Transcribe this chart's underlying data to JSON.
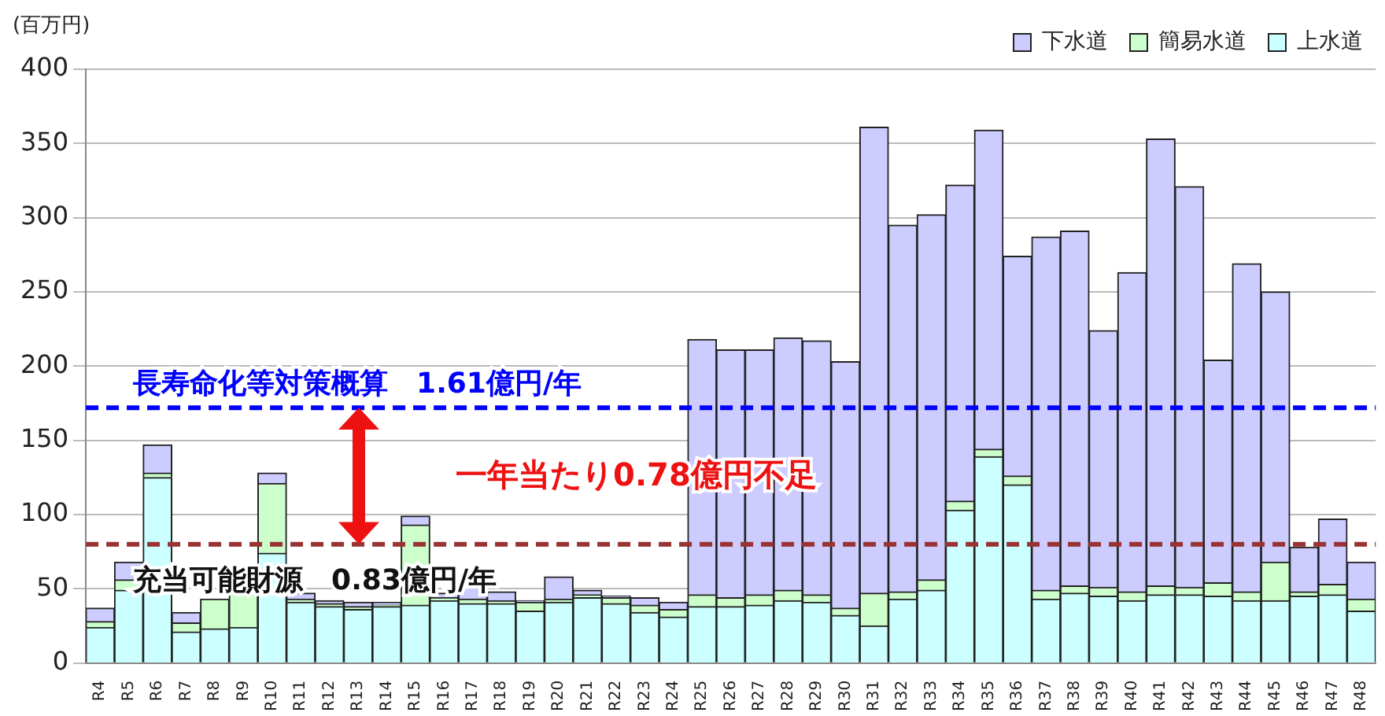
{
  "chart_data": {
    "type": "bar",
    "stacked": true,
    "ylabel": "(百万円)",
    "categories": [
      "R4",
      "R5",
      "R6",
      "R7",
      "R8",
      "R9",
      "R10",
      "R11",
      "R12",
      "R13",
      "R14",
      "R15",
      "R16",
      "R17",
      "R18",
      "R19",
      "R20",
      "R21",
      "R22",
      "R23",
      "R24",
      "R25",
      "R26",
      "R27",
      "R28",
      "R29",
      "R30",
      "R31",
      "R32",
      "R33",
      "R34",
      "R35",
      "R36",
      "R37",
      "R38",
      "R39",
      "R40",
      "R41",
      "R42",
      "R43",
      "R44",
      "R45",
      "R46",
      "R47",
      "R48"
    ],
    "series": [
      {
        "name": "上水道",
        "color": "#ccffff",
        "values": [
          24,
          49,
          125,
          21,
          23,
          24,
          74,
          41,
          38,
          36,
          38,
          39,
          42,
          40,
          40,
          35,
          41,
          44,
          40,
          34,
          31,
          38,
          38,
          39,
          42,
          41,
          32,
          25,
          43,
          49,
          103,
          139,
          120,
          43,
          47,
          45,
          42,
          46,
          46,
          45,
          42,
          42,
          45,
          46,
          35
        ]
      },
      {
        "name": "簡易水道",
        "color": "#ccffcc",
        "values": [
          4,
          7,
          3,
          6,
          20,
          24,
          47,
          2,
          2,
          2,
          1,
          54,
          2,
          3,
          2,
          6,
          2,
          2,
          4,
          5,
          5,
          8,
          6,
          7,
          7,
          5,
          5,
          22,
          5,
          7,
          6,
          5,
          6,
          6,
          5,
          6,
          6,
          6,
          5,
          9,
          6,
          26,
          3,
          7,
          8
        ]
      },
      {
        "name": "下水道",
        "color": "#ccccff",
        "values": [
          9,
          12,
          19,
          7,
          null,
          null,
          7,
          4,
          2,
          3,
          2,
          6,
          3,
          10,
          6,
          1,
          15,
          3,
          1,
          5,
          5,
          172,
          167,
          165,
          170,
          171,
          166,
          314,
          247,
          246,
          213,
          215,
          148,
          238,
          239,
          173,
          215,
          301,
          270,
          150,
          221,
          182,
          30,
          44,
          25
        ]
      }
    ],
    "ylim": [
      0,
      400
    ],
    "yticks": [
      0,
      50,
      100,
      150,
      200,
      250,
      300,
      350,
      400
    ],
    "grid": "y",
    "legend": "top right",
    "ref_lines": [
      {
        "axis": "y",
        "value": 172,
        "label": "長寿命化等対策概算　1.61億円/年",
        "color": "#0000ff",
        "line_style": "dashed"
      },
      {
        "axis": "y",
        "value": 80,
        "label": "充当可能財源　0.83億円/年",
        "color": "#993333",
        "line_style": "dashed"
      }
    ],
    "annotations": [
      "一年当たり0.78億円不足"
    ]
  }
}
